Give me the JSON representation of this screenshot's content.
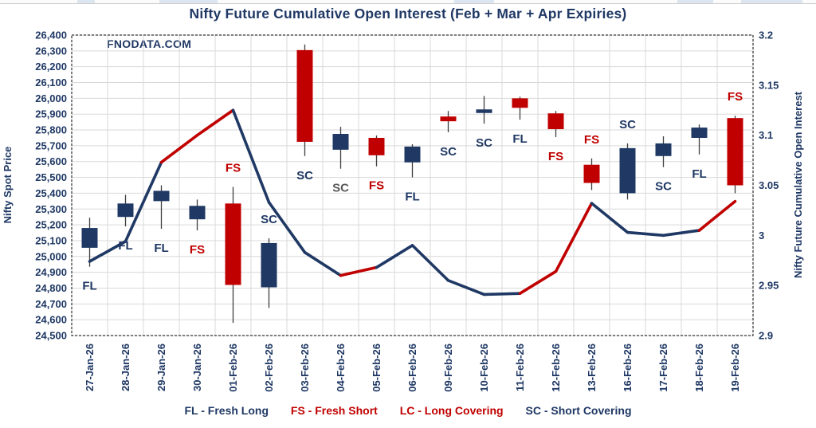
{
  "watermark": "FNODATA.COM",
  "colors": {
    "navy": "#1f3864",
    "red": "#c00000",
    "gray": "#595959",
    "grid": "#d9d9d9",
    "wick": "#3f3f3f",
    "border": "#000000",
    "candle_blue": "#1f3864",
    "candle_red": "#c00000"
  },
  "legend": [
    {
      "label": "FL - Fresh Long",
      "color": "#1f3864"
    },
    {
      "label": "FS - Fresh Short",
      "color": "#c00000"
    },
    {
      "label": "LC - Long Covering",
      "color": "#c00000"
    },
    {
      "label": "SC - Short Covering",
      "color": "#1f3864"
    }
  ],
  "chart_data": {
    "type": "candlestick_with_line",
    "title": "Nifty Future Cumulative Open Interest (Feb + Mar + Apr Expiries)",
    "left_axis": {
      "label": "Nifty Spot Price",
      "min": 24500,
      "max": 26400,
      "tick_step": 100
    },
    "right_axis": {
      "label": "Nifty Future Cumulative Open Interest",
      "min": 2.9,
      "max": 3.2,
      "ticks": [
        3.2,
        3.15,
        3.1,
        3.05,
        3,
        2.95,
        2.9
      ]
    },
    "grid": true,
    "categories": [
      "27-Jan-26",
      "28-Jan-26",
      "29-Jan-26",
      "30-Jan-26",
      "01-Feb-26",
      "02-Feb-26",
      "03-Feb-26",
      "04-Feb-26",
      "05-Feb-26",
      "06-Feb-26",
      "09-Feb-26",
      "10-Feb-26",
      "11-Feb-26",
      "12-Feb-26",
      "13-Feb-26",
      "16-Feb-26",
      "17-Feb-26",
      "18-Feb-26",
      "19-Feb-26"
    ],
    "candles": [
      {
        "date": "27-Jan-26",
        "open": 25055,
        "high": 25245,
        "low": 24935,
        "close": 25180,
        "color": "blue",
        "label": "FL",
        "label_color": "navy",
        "label_position": "below"
      },
      {
        "date": "28-Jan-26",
        "open": 25250,
        "high": 25390,
        "low": 25190,
        "close": 25335,
        "color": "blue",
        "label": "FL",
        "label_color": "navy",
        "label_position": "below"
      },
      {
        "date": "29-Jan-26",
        "open": 25350,
        "high": 25450,
        "low": 25175,
        "close": 25415,
        "color": "blue",
        "label": "FL",
        "label_color": "navy",
        "label_position": "below"
      },
      {
        "date": "30-Jan-26",
        "open": 25235,
        "high": 25360,
        "low": 25165,
        "close": 25320,
        "color": "blue",
        "label": "FS",
        "label_color": "red",
        "label_position": "below"
      },
      {
        "date": "01-Feb-26",
        "open": 25335,
        "high": 25440,
        "low": 24580,
        "close": 24820,
        "color": "red",
        "label": "FS",
        "label_color": "red",
        "label_position": "above"
      },
      {
        "date": "02-Feb-26",
        "open": 24805,
        "high": 25115,
        "low": 24675,
        "close": 25085,
        "color": "blue",
        "label": "SC",
        "label_color": "navy",
        "label_position": "above"
      },
      {
        "date": "03-Feb-26",
        "open": 26305,
        "high": 26340,
        "low": 25635,
        "close": 25725,
        "color": "red",
        "label": "SC",
        "label_color": "navy",
        "label_position": "below"
      },
      {
        "date": "04-Feb-26",
        "open": 25675,
        "high": 25820,
        "low": 25555,
        "close": 25775,
        "color": "blue",
        "label": "SC",
        "label_color": "gray",
        "label_position": "below"
      },
      {
        "date": "05-Feb-26",
        "open": 25750,
        "high": 25765,
        "low": 25570,
        "close": 25640,
        "color": "red",
        "label": "FS",
        "label_color": "red",
        "label_position": "below"
      },
      {
        "date": "06-Feb-26",
        "open": 25595,
        "high": 25710,
        "low": 25500,
        "close": 25695,
        "color": "blue",
        "label": "FL",
        "label_color": "navy",
        "label_position": "below"
      },
      {
        "date": "09-Feb-26",
        "open": 25885,
        "high": 25920,
        "low": 25785,
        "close": 25855,
        "color": "red",
        "label": "SC",
        "label_color": "navy",
        "label_position": "below"
      },
      {
        "date": "10-Feb-26",
        "open": 25920,
        "high": 26015,
        "low": 25840,
        "close": 25930,
        "color": "blue",
        "label": "SC",
        "label_color": "navy",
        "label_position": "below"
      },
      {
        "date": "11-Feb-26",
        "open": 26000,
        "high": 26010,
        "low": 25865,
        "close": 25940,
        "color": "red",
        "label": "FL",
        "label_color": "navy",
        "label_position": "below"
      },
      {
        "date": "12-Feb-26",
        "open": 25905,
        "high": 25920,
        "low": 25755,
        "close": 25805,
        "color": "red",
        "label": "FS",
        "label_color": "red",
        "label_position": "below"
      },
      {
        "date": "13-Feb-26",
        "open": 25580,
        "high": 25620,
        "low": 25420,
        "close": 25465,
        "color": "red",
        "label": "FS",
        "label_color": "red",
        "label_position": "above"
      },
      {
        "date": "16-Feb-26",
        "open": 25400,
        "high": 25715,
        "low": 25360,
        "close": 25685,
        "color": "blue",
        "label": "SC",
        "label_color": "navy",
        "label_position": "above"
      },
      {
        "date": "17-Feb-26",
        "open": 25635,
        "high": 25760,
        "low": 25565,
        "close": 25715,
        "color": "blue",
        "label": "SC",
        "label_color": "navy",
        "label_position": "below"
      },
      {
        "date": "18-Feb-26",
        "open": 25750,
        "high": 25835,
        "low": 25645,
        "close": 25815,
        "color": "blue",
        "label": "FL",
        "label_color": "navy",
        "label_position": "below"
      },
      {
        "date": "19-Feb-26",
        "open": 25875,
        "high": 25890,
        "low": 25400,
        "close": 25450,
        "color": "red",
        "label": "FS",
        "label_color": "red",
        "label_position": "above"
      }
    ],
    "oi_line": {
      "values": [
        2.974,
        2.994,
        3.073,
        3.1,
        3.125,
        3.033,
        2.983,
        2.96,
        2.968,
        2.99,
        2.955,
        2.941,
        2.942,
        2.964,
        3.032,
        3.003,
        3.0,
        3.005,
        3.034
      ],
      "segment_colors": [
        "navy",
        "navy",
        "red",
        "red",
        "navy",
        "navy",
        "navy",
        "red",
        "navy",
        "navy",
        "navy",
        "navy",
        "red",
        "red",
        "navy",
        "navy",
        "navy",
        "red"
      ]
    }
  }
}
